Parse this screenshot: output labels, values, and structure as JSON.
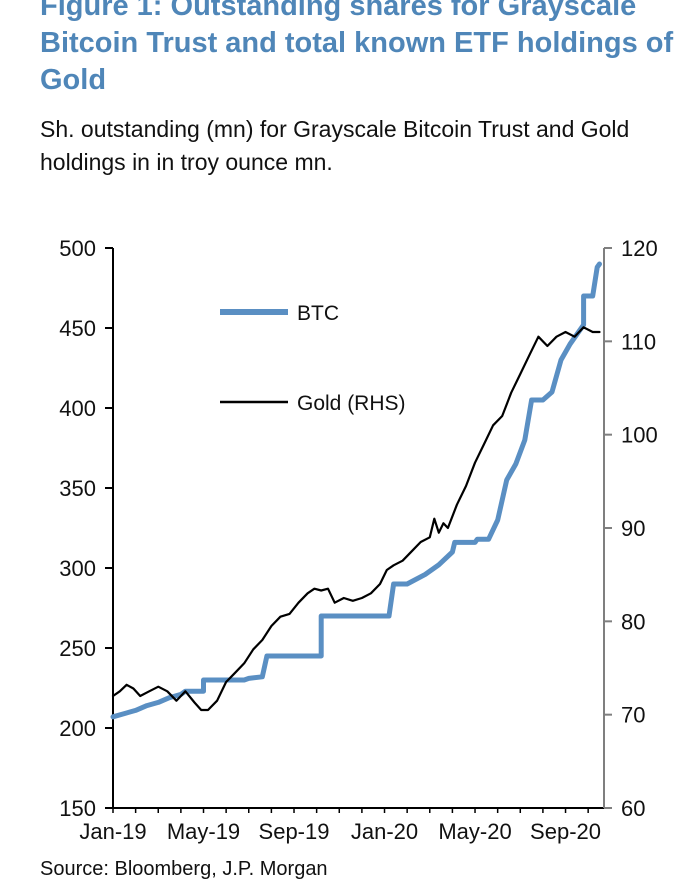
{
  "title": "Figure 1: Outstanding shares for Grayscale Bitcoin Trust and total known ETF holdings of Gold",
  "subtitle": "Sh. outstanding (mn) for Grayscale Bitcoin Trust and Gold holdings in in troy ounce mn.",
  "source": "Source: Bloomberg, J.P. Morgan",
  "chart_data": {
    "type": "line",
    "x_tick_labels": [
      "Jan-19",
      "May-19",
      "Sep-19",
      "Jan-20",
      "May-20",
      "Sep-20"
    ],
    "x_tick_months": [
      0,
      4,
      8,
      12,
      16,
      20
    ],
    "x_range_months": [
      0,
      21.7
    ],
    "ylim_left": [
      150,
      500
    ],
    "y_ticks_left": [
      150,
      200,
      250,
      300,
      350,
      400,
      450,
      500
    ],
    "ylim_right": [
      60,
      120
    ],
    "y_ticks_right": [
      60,
      70,
      80,
      90,
      100,
      110,
      120
    ],
    "legend": [
      "BTC",
      "Gold (RHS)"
    ],
    "colors": {
      "btc": "#5a8fc3",
      "gold": "#000000",
      "axis": "#000000",
      "right_axis": "#7f7f7f"
    },
    "series": [
      {
        "name": "BTC",
        "axis": "left",
        "x_months": [
          0,
          0.5,
          1.0,
          1.5,
          2.0,
          2.5,
          3.0,
          3.2,
          4.0,
          4.0,
          5.0,
          5.5,
          5.8,
          6.0,
          6.6,
          6.8,
          8.0,
          9.2,
          9.2,
          10.5,
          11.5,
          12.2,
          12.4,
          13.0,
          13.8,
          14.4,
          15.0,
          15.1,
          16.0,
          16.1,
          16.6,
          17.0,
          17.4,
          17.8,
          18.2,
          18.5,
          19.0,
          19.4,
          19.8,
          20.2,
          20.8,
          20.8,
          21.2,
          21.4,
          21.5
        ],
        "values": [
          207,
          209,
          211,
          214,
          216,
          219,
          221,
          223,
          223,
          230,
          230,
          230,
          230,
          231,
          232,
          245,
          245,
          245,
          270,
          270,
          270,
          270,
          290,
          290,
          296,
          302,
          310,
          316,
          316,
          318,
          318,
          330,
          355,
          365,
          380,
          405,
          405,
          410,
          430,
          440,
          452,
          470,
          470,
          488,
          490
        ]
      },
      {
        "name": "Gold (RHS)",
        "axis": "right",
        "x_months": [
          0,
          0.3,
          0.6,
          0.9,
          1.2,
          1.6,
          2.0,
          2.4,
          2.8,
          3.2,
          3.6,
          3.9,
          4.2,
          4.6,
          5.0,
          5.4,
          5.8,
          6.2,
          6.6,
          7.0,
          7.4,
          7.8,
          8.2,
          8.6,
          8.9,
          9.2,
          9.5,
          9.8,
          10.2,
          10.6,
          11.0,
          11.4,
          11.8,
          12.1,
          12.4,
          12.8,
          13.2,
          13.6,
          14.0,
          14.2,
          14.4,
          14.6,
          14.8,
          15.2,
          15.6,
          16.0,
          16.4,
          16.8,
          17.2,
          17.6,
          18.0,
          18.4,
          18.8,
          19.2,
          19.6,
          20.0,
          20.4,
          20.8,
          21.2,
          21.5
        ],
        "values": [
          72,
          72.5,
          73.2,
          72.8,
          72,
          72.5,
          73,
          72.5,
          71.5,
          72.5,
          71.3,
          70.5,
          70.5,
          71.5,
          73.5,
          74.5,
          75.5,
          77,
          78,
          79.5,
          80.5,
          80.8,
          82,
          83,
          83.5,
          83.3,
          83.5,
          82,
          82.5,
          82.2,
          82.5,
          83,
          84,
          85.5,
          86,
          86.5,
          87.5,
          88.5,
          89,
          91,
          89.5,
          90.5,
          90,
          92.5,
          94.5,
          97,
          99,
          101,
          102,
          104.5,
          106.5,
          108.5,
          110.5,
          109.5,
          110.5,
          111,
          110.5,
          111.5,
          111,
          111
        ]
      }
    ]
  }
}
